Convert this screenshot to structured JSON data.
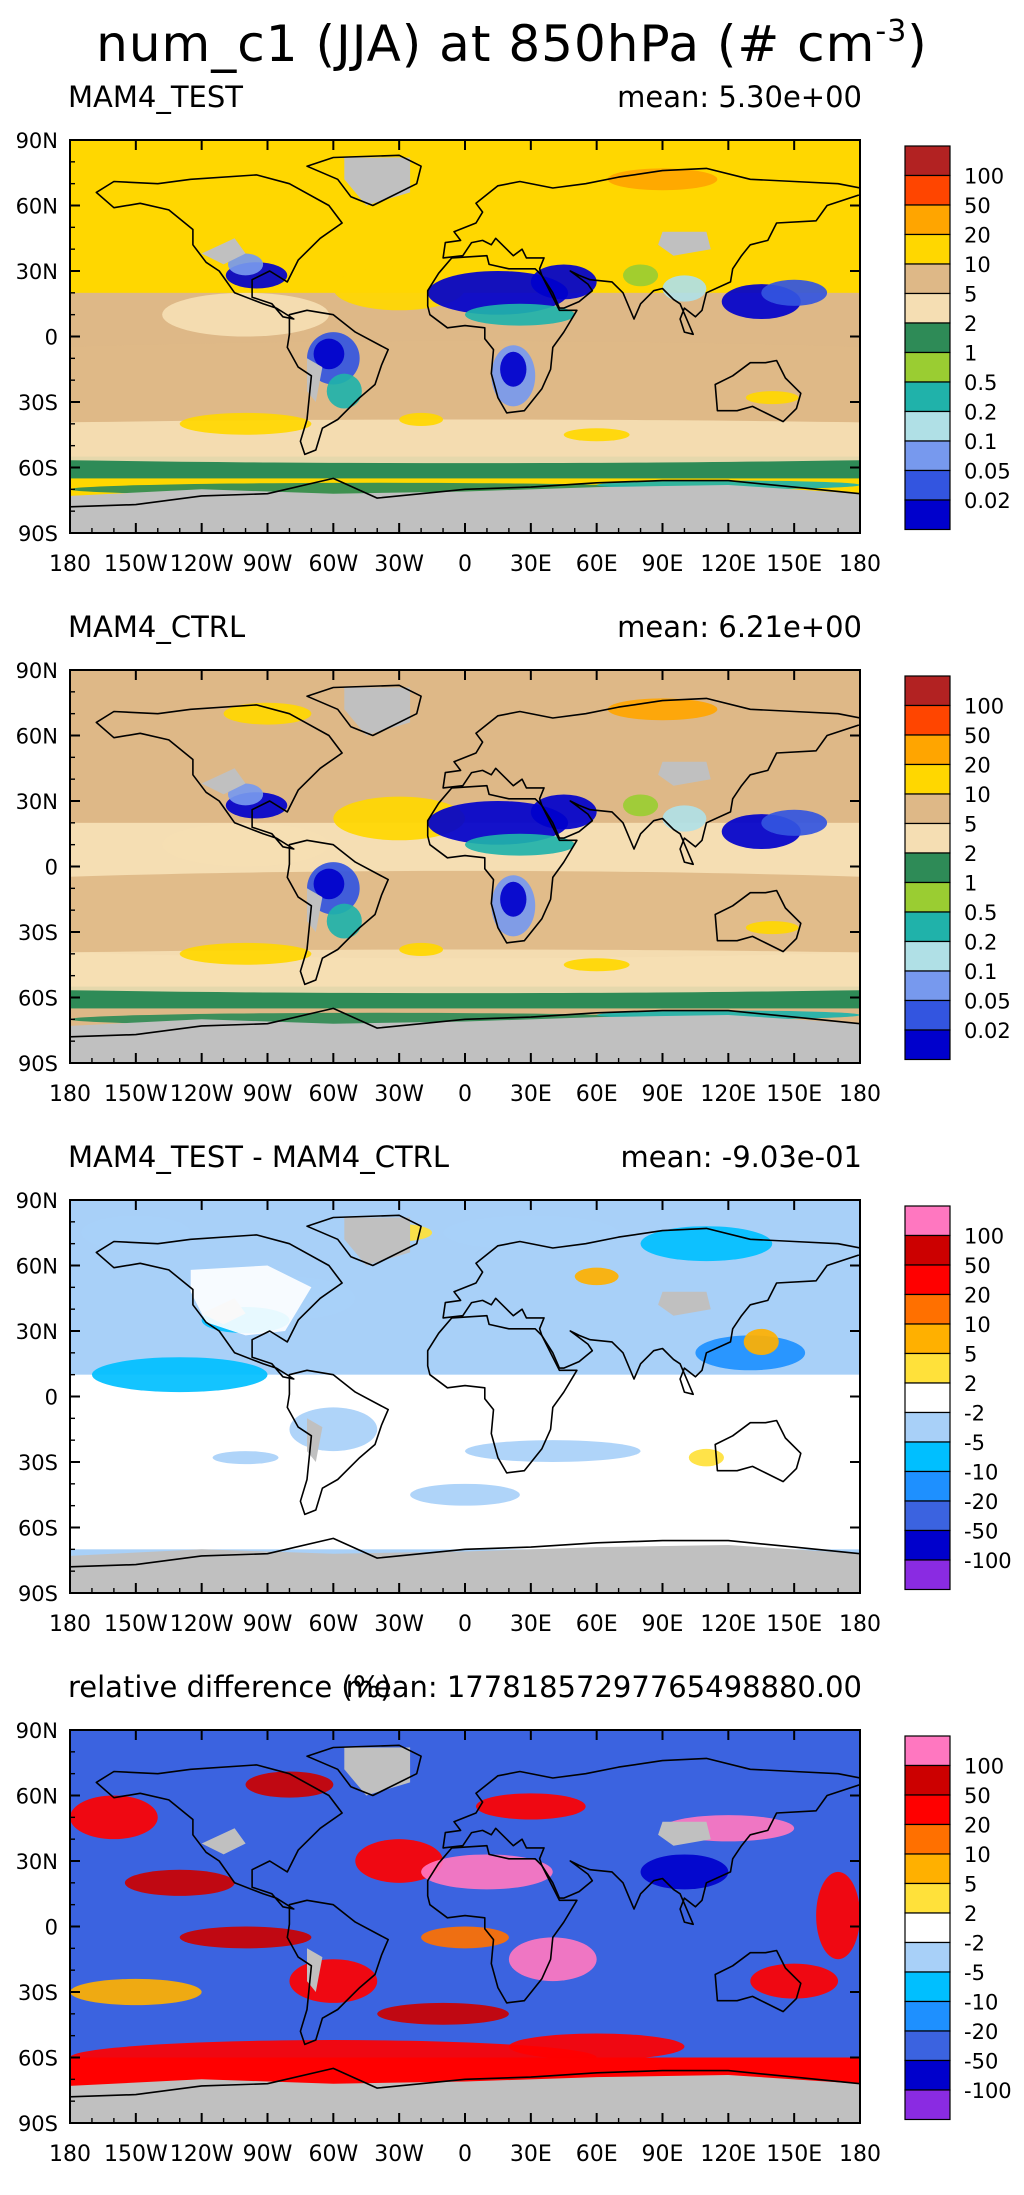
{
  "title": {
    "text": "num_c1 (JJA) at 850hPa (# cm",
    "exp": "-3",
    "close": ")"
  },
  "colors": {
    "abs_scale": [
      "#0000cc",
      "#3355e0",
      "#7799ee",
      "#b0e0e6",
      "#20b2aa",
      "#9acd32",
      "#2e8b57",
      "#f5deb3",
      "#deb887",
      "#ffd700",
      "#ffa500",
      "#ff4500",
      "#b22222"
    ],
    "diff_scale": [
      "#8a2be2",
      "#0000cc",
      "#3b63e0",
      "#1e90ff",
      "#00bfff",
      "#a8d0f8",
      "#ffffff",
      "#ffe13a",
      "#ffb000",
      "#ff7000",
      "#ff0000",
      "#cc0000",
      "#ff77c0"
    ],
    "land_missing": "#c0c0c0"
  },
  "axes": {
    "x_labels": [
      "180",
      "150W",
      "120W",
      "90W",
      "60W",
      "30W",
      "0",
      "30E",
      "60E",
      "90E",
      "120E",
      "150E",
      "180"
    ],
    "y_labels": [
      "90N",
      "60N",
      "30N",
      "0",
      "30S",
      "60S",
      "90S"
    ]
  },
  "panels": [
    {
      "title": "MAM4_TEST",
      "mean": "mean: 5.30e+00",
      "scale": "abs",
      "levels": [
        "100",
        "50",
        "20",
        "10",
        "5",
        "2",
        "1",
        "0.5",
        "0.2",
        "0.1",
        "0.05",
        "0.02"
      ]
    },
    {
      "title": "MAM4_CTRL",
      "mean": "mean: 6.21e+00",
      "scale": "abs",
      "levels": [
        "100",
        "50",
        "20",
        "10",
        "5",
        "2",
        "1",
        "0.5",
        "0.2",
        "0.1",
        "0.05",
        "0.02"
      ]
    },
    {
      "title": "MAM4_TEST - MAM4_CTRL",
      "mean": "mean: -9.03e-01",
      "scale": "diff",
      "levels": [
        "100",
        "50",
        "20",
        "10",
        "5",
        "2",
        "-2",
        "-5",
        "-10",
        "-20",
        "-50",
        "-100"
      ]
    },
    {
      "title": "relative difference (%)",
      "mean": "mean: 17781857297765498880.00",
      "scale": "diff",
      "levels": [
        "100",
        "50",
        "20",
        "10",
        "5",
        "2",
        "-2",
        "-5",
        "-10",
        "-20",
        "-50",
        "-100"
      ]
    }
  ],
  "chart_data": [
    {
      "type": "heatmap",
      "title": "MAM4_TEST",
      "mean": 5.3,
      "variable": "num_c1",
      "season": "JJA",
      "level_hPa": 850,
      "units": "# cm-3",
      "xlim": [
        -180,
        180
      ],
      "ylim": [
        -90,
        90
      ],
      "contour_levels": [
        0.02,
        0.05,
        0.1,
        0.2,
        0.5,
        1,
        2,
        5,
        10,
        20,
        50,
        100
      ]
    },
    {
      "type": "heatmap",
      "title": "MAM4_CTRL",
      "mean": 6.21,
      "variable": "num_c1",
      "season": "JJA",
      "level_hPa": 850,
      "units": "# cm-3",
      "xlim": [
        -180,
        180
      ],
      "ylim": [
        -90,
        90
      ],
      "contour_levels": [
        0.02,
        0.05,
        0.1,
        0.2,
        0.5,
        1,
        2,
        5,
        10,
        20,
        50,
        100
      ]
    },
    {
      "type": "heatmap",
      "title": "MAM4_TEST - MAM4_CTRL",
      "mean": -0.903,
      "units": "# cm-3",
      "xlim": [
        -180,
        180
      ],
      "ylim": [
        -90,
        90
      ],
      "contour_levels": [
        -100,
        -50,
        -20,
        -10,
        -5,
        -2,
        2,
        5,
        10,
        20,
        50,
        100
      ]
    },
    {
      "type": "heatmap",
      "title": "relative difference (%)",
      "mean": 1.7781857297765499e+19,
      "units": "%",
      "xlim": [
        -180,
        180
      ],
      "ylim": [
        -90,
        90
      ],
      "contour_levels": [
        -100,
        -50,
        -20,
        -10,
        -5,
        -2,
        2,
        5,
        10,
        20,
        50,
        100
      ]
    }
  ]
}
